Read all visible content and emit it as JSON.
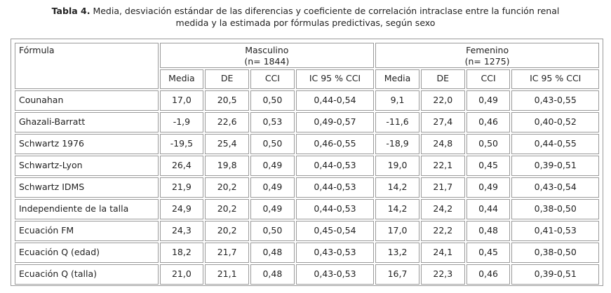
{
  "caption": {
    "label": "Tabla 4.",
    "line1": " Media, desviación estándar de las diferencias y coeficiente de correlación intraclase entre la función renal",
    "line2": "medida y la estimada por fórmulas predictivas, según sexo"
  },
  "table": {
    "formula_header": "Fórmula",
    "groups": [
      {
        "name": "Masculino",
        "n": "(n= 1844)"
      },
      {
        "name": "Femenino",
        "n": "(n= 1275)"
      }
    ],
    "subheaders": [
      "Media",
      "DE",
      "CCI",
      "IC 95 % CCI",
      "Media",
      "DE",
      "CCI",
      "IC 95 % CCI"
    ],
    "rows": [
      {
        "formula": "Counahan",
        "values": [
          "17,0",
          "20,5",
          "0,50",
          "0,44-0,54",
          "9,1",
          "22,0",
          "0,49",
          "0,43-0,55"
        ]
      },
      {
        "formula": "Ghazali-Barratt",
        "values": [
          "-1,9",
          "22,6",
          "0,53",
          "0,49-0,57",
          "-11,6",
          "27,4",
          "0,46",
          "0,40-0,52"
        ]
      },
      {
        "formula": "Schwartz 1976",
        "values": [
          "-19,5",
          "25,4",
          "0,50",
          "0,46-0,55",
          "-18,9",
          "24,8",
          "0,50",
          "0,44-0,55"
        ]
      },
      {
        "formula": "Schwartz-Lyon",
        "values": [
          "26,4",
          "19,8",
          "0,49",
          "0,44-0,53",
          "19,0",
          "22,1",
          "0,45",
          "0,39-0,51"
        ]
      },
      {
        "formula": "Schwartz IDMS",
        "values": [
          "21,9",
          "20,2",
          "0,49",
          "0,44-0,53",
          "14,2",
          "21,7",
          "0,49",
          "0,43-0,54"
        ]
      },
      {
        "formula": "Independiente de la talla",
        "values": [
          "24,9",
          "20,2",
          "0,49",
          "0,44-0,53",
          "14,2",
          "24,2",
          "0,44",
          "0,38-0,50"
        ]
      },
      {
        "formula": "Ecuación FM",
        "values": [
          "24,3",
          "20,2",
          "0,50",
          "0,45-0,54",
          "17,0",
          "22,2",
          "0,48",
          "0,41-0,53"
        ]
      },
      {
        "formula": "Ecuación Q (edad)",
        "values": [
          "18,2",
          "21,7",
          "0,48",
          "0,43-0,53",
          "13,2",
          "24,1",
          "0,45",
          "0,38-0,50"
        ]
      },
      {
        "formula": "Ecuación Q (talla)",
        "values": [
          "21,0",
          "21,1",
          "0,48",
          "0,43-0,53",
          "16,7",
          "22,3",
          "0,46",
          "0,39-0,51"
        ]
      }
    ]
  }
}
